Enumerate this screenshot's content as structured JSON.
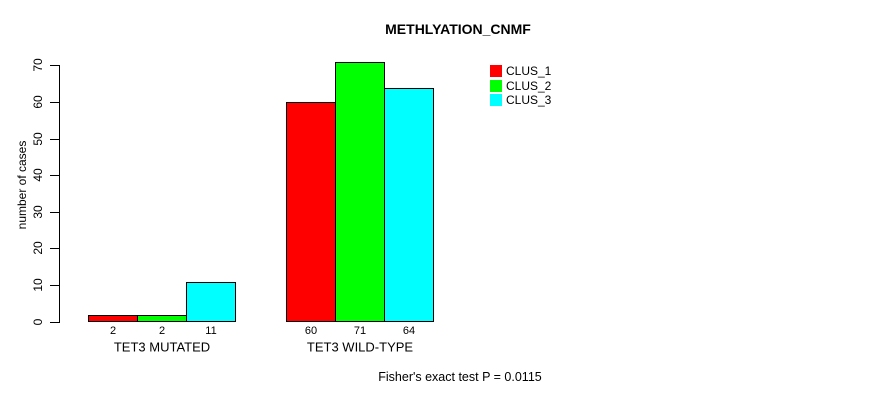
{
  "chart_data": {
    "type": "bar",
    "title": "METHLYATION_CNMF",
    "xlabel": "",
    "ylabel": "number of cases",
    "ylim": [
      0,
      70
    ],
    "yticks": [
      0,
      10,
      20,
      30,
      40,
      50,
      60,
      70
    ],
    "categories": [
      "TET3 MUTATED",
      "TET3 WILD-TYPE"
    ],
    "series": [
      {
        "name": "CLUS_1",
        "color": "#ff0000",
        "values": [
          2,
          60
        ]
      },
      {
        "name": "CLUS_2",
        "color": "#00ff00",
        "values": [
          2,
          71
        ]
      },
      {
        "name": "CLUS_3",
        "color": "#00ffff",
        "values": [
          11,
          64
        ]
      }
    ],
    "bar_value_labels_shown": true,
    "grid": false,
    "legend_position": "inside-top-right",
    "annotation": "Fisher's exact test P = 0.0115"
  }
}
